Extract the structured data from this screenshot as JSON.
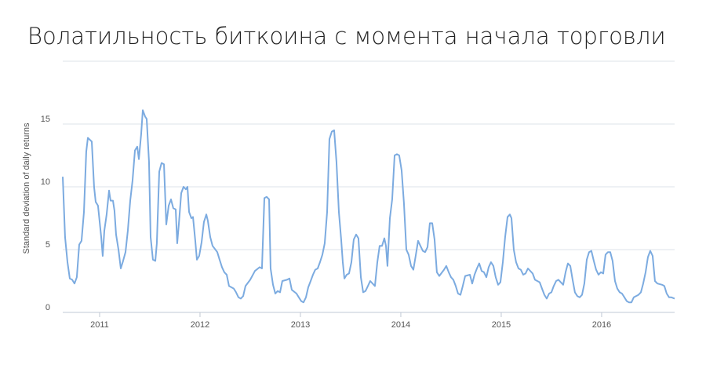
{
  "chart_data": {
    "type": "line",
    "title": "Волатильность биткоина с момента начала торговли",
    "y_label": "Standard deviation of daily returns",
    "color": "#7cabe0",
    "grid": true,
    "xlim": [
      2010.633,
      2016.727
    ],
    "xticks": [
      2011,
      2012,
      2013,
      2014,
      2015,
      2016
    ],
    "ylim": [
      0,
      20
    ],
    "yticks": [
      0,
      5,
      10,
      15
    ],
    "x": [
      2010.633,
      2010.656,
      2010.68,
      2010.703,
      2010.727,
      2010.75,
      2010.773,
      2010.797,
      2010.82,
      2010.844,
      2010.867,
      2010.883,
      2010.922,
      2010.945,
      2010.961,
      2010.984,
      2011.016,
      2011.031,
      2011.047,
      2011.07,
      2011.094,
      2011.109,
      2011.133,
      2011.148,
      2011.164,
      2011.188,
      2011.211,
      2011.234,
      2011.258,
      2011.281,
      2011.305,
      2011.328,
      2011.352,
      2011.375,
      2011.391,
      2011.414,
      2011.43,
      2011.453,
      2011.469,
      2011.492,
      2011.508,
      2011.531,
      2011.555,
      2011.57,
      2011.594,
      2011.617,
      2011.641,
      2011.664,
      2011.688,
      2011.711,
      2011.734,
      2011.758,
      2011.773,
      2011.789,
      2011.813,
      2011.836,
      2011.859,
      2011.875,
      2011.891,
      2011.914,
      2011.93,
      2011.953,
      2011.969,
      2011.992,
      2012.016,
      2012.039,
      2012.063,
      2012.078,
      2012.102,
      2012.125,
      2012.172,
      2012.195,
      2012.219,
      2012.242,
      2012.266,
      2012.289,
      2012.336,
      2012.359,
      2012.383,
      2012.406,
      2012.43,
      2012.453,
      2012.5,
      2012.547,
      2012.594,
      2012.617,
      2012.641,
      2012.664,
      2012.688,
      2012.703,
      2012.727,
      2012.75,
      2012.773,
      2012.797,
      2012.82,
      2012.867,
      2012.891,
      2012.914,
      2012.961,
      2012.984,
      2013.008,
      2013.031,
      2013.055,
      2013.078,
      2013.102,
      2013.125,
      2013.148,
      2013.172,
      2013.195,
      2013.219,
      2013.242,
      2013.266,
      2013.289,
      2013.313,
      2013.336,
      2013.359,
      2013.383,
      2013.406,
      2013.422,
      2013.438,
      2013.461,
      2013.484,
      2013.508,
      2013.531,
      2013.555,
      2013.578,
      2013.602,
      2013.625,
      2013.648,
      2013.672,
      2013.695,
      2013.742,
      2013.766,
      2013.789,
      2013.813,
      2013.836,
      2013.852,
      2013.867,
      2013.891,
      2013.914,
      2013.938,
      2013.961,
      2013.984,
      2014.008,
      2014.031,
      2014.055,
      2014.078,
      2014.102,
      2014.125,
      2014.148,
      2014.172,
      2014.195,
      2014.219,
      2014.242,
      2014.266,
      2014.289,
      2014.313,
      2014.336,
      2014.359,
      2014.383,
      2014.43,
      2014.453,
      2014.477,
      2014.5,
      2014.523,
      2014.547,
      2014.57,
      2014.594,
      2014.617,
      2014.641,
      2014.688,
      2014.711,
      2014.734,
      2014.758,
      2014.781,
      2014.805,
      2014.828,
      2014.852,
      2014.875,
      2014.898,
      2014.922,
      2014.945,
      2014.969,
      2014.992,
      2015.016,
      2015.039,
      2015.063,
      2015.086,
      2015.102,
      2015.125,
      2015.148,
      2015.172,
      2015.195,
      2015.219,
      2015.242,
      2015.266,
      2015.313,
      2015.336,
      2015.383,
      2015.406,
      2015.43,
      2015.453,
      2015.477,
      2015.5,
      2015.523,
      2015.547,
      2015.57,
      2015.617,
      2015.641,
      2015.664,
      2015.688,
      2015.711,
      2015.734,
      2015.758,
      2015.781,
      2015.805,
      2015.828,
      2015.852,
      2015.875,
      2015.898,
      2015.922,
      2015.945,
      2015.969,
      2015.992,
      2016.016,
      2016.039,
      2016.063,
      2016.086,
      2016.109,
      2016.133,
      2016.156,
      2016.18,
      2016.203,
      2016.227,
      2016.25,
      2016.273,
      2016.297,
      2016.32,
      2016.367,
      2016.391,
      2016.414,
      2016.438,
      2016.461,
      2016.484,
      2016.508,
      2016.531,
      2016.555,
      2016.602,
      2016.625,
      2016.648,
      2016.672,
      2016.695,
      2016.727
    ],
    "values": [
      10.8,
      6,
      4,
      2.7,
      2.6,
      2.3,
      2.8,
      5.4,
      5.7,
      8,
      12.8,
      13.9,
      13.6,
      10,
      8.8,
      8.5,
      6,
      4.5,
      6.5,
      7.8,
      9.7,
      8.9,
      8.9,
      8.1,
      6.2,
      5,
      3.5,
      4.1,
      4.8,
      6.5,
      8.9,
      10.5,
      12.9,
      13.2,
      12.2,
      14.2,
      16.1,
      15.6,
      15.4,
      12,
      6,
      4.2,
      4.1,
      5.5,
      11.2,
      11.9,
      11.8,
      7,
      8.5,
      9,
      8.3,
      8.2,
      5.5,
      7,
      9.5,
      10,
      9.8,
      10,
      8,
      7.5,
      7.6,
      5.7,
      4.2,
      4.5,
      5.6,
      7.2,
      7.8,
      7.3,
      6,
      5.3,
      4.8,
      4.2,
      3.6,
      3.2,
      3,
      2.1,
      1.9,
      1.6,
      1.2,
      1.1,
      1.3,
      2.1,
      2.6,
      3.3,
      3.6,
      3.5,
      9.1,
      9.2,
      9,
      3.5,
      2.2,
      1.5,
      1.7,
      1.6,
      2.5,
      2.6,
      2.7,
      1.8,
      1.5,
      1.2,
      0.9,
      0.8,
      1.2,
      2,
      2.5,
      3,
      3.4,
      3.5,
      4,
      4.6,
      5.5,
      8,
      13.8,
      14.4,
      14.5,
      12,
      8,
      5.8,
      4,
      2.7,
      3,
      3.1,
      4,
      5.8,
      6.2,
      5.9,
      2.8,
      1.6,
      1.7,
      2.1,
      2.5,
      2.1,
      4,
      5.3,
      5.3,
      5.9,
      5.3,
      3.7,
      7.5,
      9,
      12.5,
      12.6,
      12.5,
      11.3,
      8.7,
      5,
      4.6,
      3.7,
      3.4,
      4.5,
      5.7,
      5.3,
      4.9,
      4.8,
      5.2,
      7.1,
      7.1,
      5.8,
      3.2,
      2.9,
      3.4,
      3.7,
      3.2,
      2.8,
      2.6,
      2.1,
      1.5,
      1.4,
      2.1,
      2.9,
      3,
      2.3,
      3,
      3.5,
      3.9,
      3.3,
      3.2,
      2.8,
      3.6,
      4,
      3.7,
      2.8,
      2.2,
      2.4,
      4,
      6,
      7.6,
      7.8,
      7.5,
      5,
      4,
      3.5,
      3.4,
      3,
      3.1,
      3.5,
      3.1,
      2.6,
      2.4,
      1.9,
      1.4,
      1.1,
      1.5,
      1.6,
      2.1,
      2.5,
      2.6,
      2.2,
      3.2,
      3.9,
      3.7,
      2.6,
      1.6,
      1.3,
      1.2,
      1.4,
      2.3,
      4.2,
      4.8,
      4.9,
      4.1,
      3.4,
      3,
      3.2,
      3.1,
      4.6,
      4.8,
      4.8,
      4.1,
      2.5,
      1.9,
      1.6,
      1.5,
      1.2,
      0.9,
      0.8,
      0.8,
      1.2,
      1.4,
      1.6,
      2.3,
      3.2,
      4.4,
      4.9,
      4.5,
      2.5,
      2.3,
      2.2,
      2.1,
      1.5,
      1.2,
      1.2,
      1.1
    ]
  }
}
